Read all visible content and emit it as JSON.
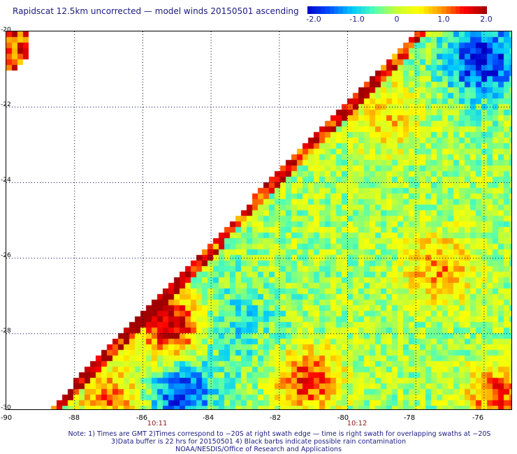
{
  "title": "Rapidscat 12.5km uncorrected — model winds 20150501 ascending",
  "colorbar": {
    "ticks": [
      "-2.0",
      "-1.0",
      "0",
      "1.0",
      "2.0"
    ],
    "min": -2.0,
    "max": 2.0,
    "colors": [
      "#0000c8",
      "#0050ff",
      "#00c8ff",
      "#50ffb4",
      "#c8ff32",
      "#ffff00",
      "#ff9600",
      "#ff0000",
      "#a00000"
    ]
  },
  "axes": {
    "lon_labels": [
      "-90",
      "-88",
      "-86",
      "-84",
      "-82",
      "-80",
      "-78",
      "-76"
    ],
    "lat_labels": [
      "-20",
      "-22",
      "-24",
      "-26",
      "-28",
      "-30"
    ],
    "lon_range": [
      -90,
      -75.2
    ],
    "lat_range": [
      -20,
      -30
    ]
  },
  "time_labels": [
    {
      "lon": -86,
      "text": "10:11"
    },
    {
      "lon": -80,
      "text": "10:12"
    }
  ],
  "notes": [
    "Note: 1) Times are GMT 2)Times correspond to −20S at right swath edge — time is right swath for overlapping swaths at −20S",
    "3)Data buffer is 22 hrs for 20150501 4) Black barbs indicate possible rain contamination",
    "NOAA/NESDIS/Office of Research and Applications"
  ]
}
